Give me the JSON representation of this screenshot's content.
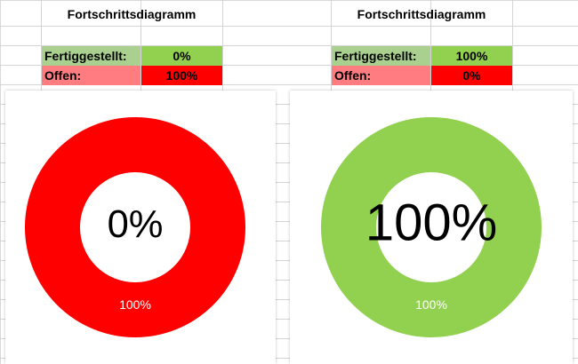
{
  "colors": {
    "done_light": "#a9d08e",
    "done_strong": "#92d050",
    "open_light": "#ff7c80",
    "open_strong": "#ff0000",
    "grid": "#d9d9d9"
  },
  "tables": [
    {
      "title": "Fortschrittsdiagramm",
      "done_label": "Fertiggestellt:",
      "done_value": "0%",
      "open_label": "Offen:",
      "open_value": "100%"
    },
    {
      "title": "Fortschrittsdiagramm",
      "done_label": "Fertiggestellt:",
      "done_value": "100%",
      "open_label": "Offen:",
      "open_value": "0%"
    }
  ],
  "chart_data": [
    {
      "type": "pie",
      "categories": [
        "Fertiggestellt",
        "Offen"
      ],
      "values": [
        0,
        100
      ],
      "center_label": "0%",
      "data_labels": [
        "100%"
      ],
      "colors": [
        "#92d050",
        "#ff0000"
      ]
    },
    {
      "type": "pie",
      "categories": [
        "Fertiggestellt",
        "Offen"
      ],
      "values": [
        100,
        0
      ],
      "center_label": "100%",
      "data_labels": [
        "100%"
      ],
      "colors": [
        "#92d050",
        "#ff0000"
      ]
    }
  ]
}
